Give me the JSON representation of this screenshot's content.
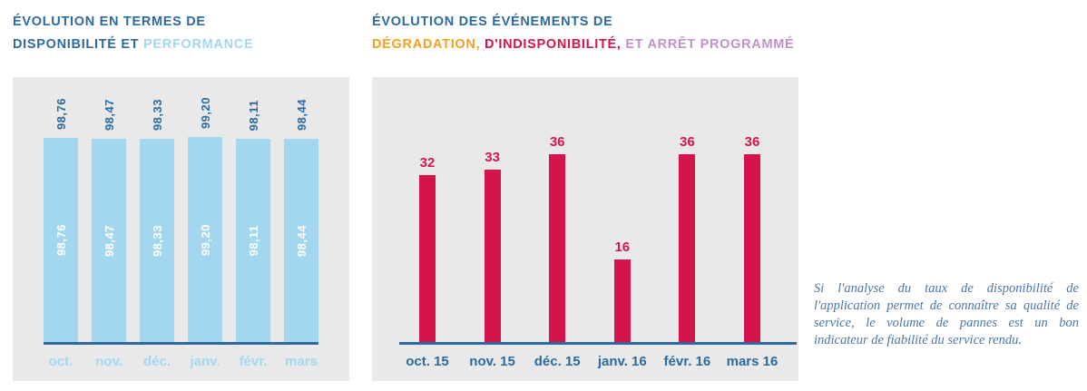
{
  "left_chart": {
    "title_line1": "ÉVOLUTION EN TERMES DE",
    "title_line2_dark": "DISPONIBILITÉ ET ",
    "title_line2_accent": "PERFORMANCE"
  },
  "right_chart": {
    "title_line1": "ÉVOLUTION DES ÉVÉNEMENTS DE",
    "title_seg_orange": "DÉGRADATION,",
    "title_seg_red": " D'INDISPONIBILITÉ,",
    "title_seg_purple": " ET ARRÊT PROGRAMMÉ"
  },
  "note": {
    "text": "Si l'analyse du taux de disponibilité de l'application permet de connaître sa qualité de service, le volume de pannes est un bon indicateur de fiabilité du service rendu."
  },
  "colors": {
    "title_blue": "#2d6a9f",
    "light_blue": "#a3d7f0",
    "crimson": "#d4154b",
    "orange": "#f5a01e",
    "purple": "#c291cc",
    "panel_gray": "#e9e9e9",
    "note_blue": "#4a77a8"
  },
  "chart_data": [
    {
      "type": "bar",
      "title": "Évolution en termes de disponibilité et performance",
      "categories": [
        "oct.",
        "nov.",
        "déc.",
        "janv.",
        "févr.",
        "mars"
      ],
      "values": [
        98.76,
        98.47,
        98.33,
        99.2,
        98.11,
        98.44
      ],
      "value_labels": [
        "98,76",
        "98,47",
        "98,33",
        "99,20",
        "98,11",
        "98,44"
      ],
      "bar_color": "#a3d7f0",
      "value_label_positions": [
        "above bar (rotated 90°)",
        "inside bar (rotated 90°, white)"
      ],
      "xlabel": "",
      "ylabel": "",
      "ylim": [
        0,
        100
      ],
      "grid": false,
      "legend": false
    },
    {
      "type": "bar",
      "title": "Évolution des événements de dégradation, d'indisponibilité, et arrêt programmé",
      "categories": [
        "oct. 15",
        "nov. 15",
        "déc. 15",
        "janv. 16",
        "févr. 16",
        "mars 16"
      ],
      "values": [
        32,
        33,
        36,
        16,
        36,
        36
      ],
      "value_labels": [
        "32",
        "33",
        "36",
        "16",
        "36",
        "36"
      ],
      "bar_color": "#d4154b",
      "xlabel": "",
      "ylabel": "",
      "ylim": [
        0,
        40
      ],
      "grid": false,
      "legend": false
    }
  ]
}
